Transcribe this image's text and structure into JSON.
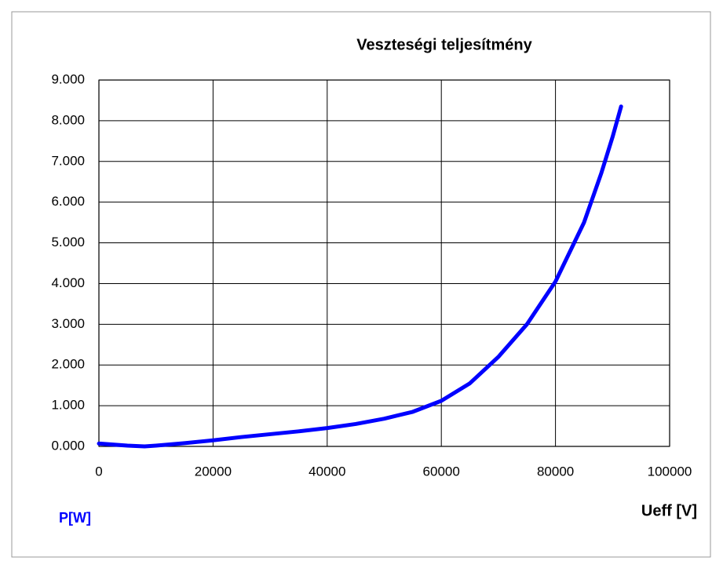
{
  "chart_data": {
    "type": "line",
    "title": "Veszteségi teljesítmény",
    "xlabel": "Ueff [V]",
    "ylabel": "P[W]",
    "x": [
      0,
      5000,
      8000,
      10000,
      15000,
      20000,
      25000,
      30000,
      35000,
      40000,
      45000,
      50000,
      55000,
      60000,
      65000,
      70000,
      75000,
      80000,
      85000,
      88000,
      90000,
      91500
    ],
    "values": [
      0.07,
      0.02,
      0.0,
      0.02,
      0.08,
      0.15,
      0.23,
      0.3,
      0.37,
      0.45,
      0.55,
      0.68,
      0.85,
      1.12,
      1.55,
      2.2,
      3.0,
      4.05,
      5.5,
      6.7,
      7.6,
      8.35
    ],
    "color": "#0000ff",
    "xlim": [
      0,
      100000
    ],
    "xticks": [
      0,
      20000,
      40000,
      60000,
      80000,
      100000
    ],
    "ylim": [
      0,
      9
    ],
    "yticks": [
      {
        "value": 0,
        "label": "0.000"
      },
      {
        "value": 1,
        "label": "1.000"
      },
      {
        "value": 2,
        "label": "2.000"
      },
      {
        "value": 3,
        "label": "3.000"
      },
      {
        "value": 4,
        "label": "4.000"
      },
      {
        "value": 5,
        "label": "5.000"
      },
      {
        "value": 6,
        "label": "6.000"
      },
      {
        "value": 7,
        "label": "7.000"
      },
      {
        "value": 8,
        "label": "8.000"
      },
      {
        "value": 9,
        "label": "9.000"
      }
    ],
    "grid": true
  }
}
